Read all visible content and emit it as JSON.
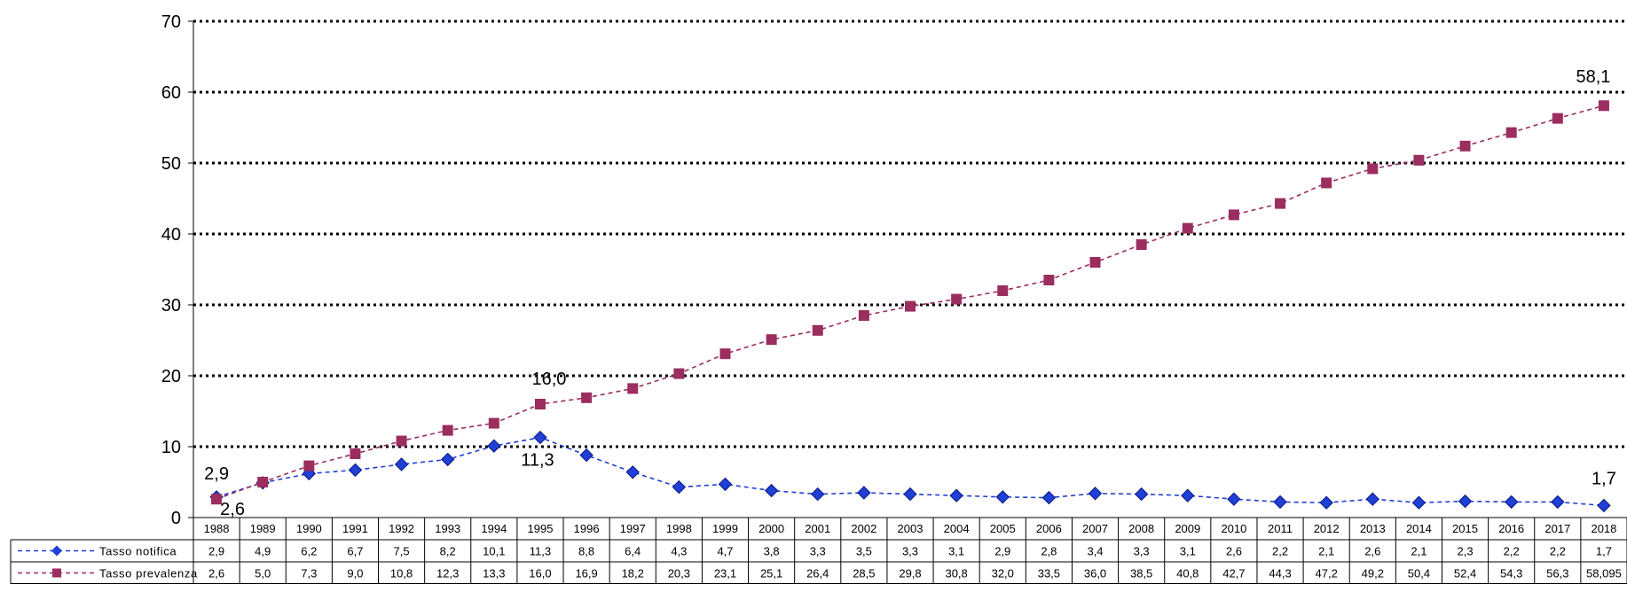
{
  "chart_data": {
    "type": "line",
    "title": "",
    "xlabel": "",
    "ylabel": "",
    "ylim": [
      0,
      70
    ],
    "yticks": [
      "0",
      "10",
      "20",
      "30",
      "40",
      "50",
      "60",
      "70"
    ],
    "grid": "horizontal-dotted",
    "legend": "data-table-bottom",
    "categories": [
      "1988",
      "1989",
      "1990",
      "1991",
      "1992",
      "1993",
      "1994",
      "1995",
      "1996",
      "1997",
      "1998",
      "1999",
      "2000",
      "2001",
      "2002",
      "2003",
      "2004",
      "2005",
      "2006",
      "2007",
      "2008",
      "2009",
      "2010",
      "2011",
      "2012",
      "2013",
      "2014",
      "2015",
      "2016",
      "2017",
      "2018"
    ],
    "series": [
      {
        "name": "Tasso notifica",
        "color": "#1f3fd6",
        "marker": "diamond",
        "values": [
          2.9,
          4.9,
          6.2,
          6.7,
          7.5,
          8.2,
          10.1,
          11.3,
          8.8,
          6.4,
          4.3,
          4.7,
          3.8,
          3.3,
          3.5,
          3.3,
          3.1,
          2.9,
          2.8,
          3.4,
          3.3,
          3.1,
          2.6,
          2.2,
          2.1,
          2.6,
          2.1,
          2.3,
          2.2,
          2.2,
          1.7
        ],
        "table_labels": [
          "2,9",
          "4,9",
          "6,2",
          "6,7",
          "7,5",
          "8,2",
          "10,1",
          "11,3",
          "8,8",
          "6,4",
          "4,3",
          "4,7",
          "3,8",
          "3,3",
          "3,5",
          "3,3",
          "3,1",
          "2,9",
          "2,8",
          "3,4",
          "3,3",
          "3,1",
          "2,6",
          "2,2",
          "2,1",
          "2,6",
          "2,1",
          "2,3",
          "2,2",
          "2,2",
          "1,7"
        ]
      },
      {
        "name": "Tasso prevalenza",
        "color": "#9b2d5f",
        "marker": "square",
        "values": [
          2.6,
          5.0,
          7.3,
          9.0,
          10.8,
          12.3,
          13.3,
          16.0,
          16.9,
          18.2,
          20.3,
          23.1,
          25.1,
          26.4,
          28.5,
          29.8,
          30.8,
          32.0,
          33.5,
          36.0,
          38.5,
          40.8,
          42.7,
          44.3,
          47.2,
          49.2,
          50.4,
          52.4,
          54.3,
          56.3,
          58.095
        ],
        "table_labels": [
          "2,6",
          "5,0",
          "7,3",
          "9,0",
          "10,8",
          "12,3",
          "13,3",
          "16,0",
          "16,9",
          "18,2",
          "20,3",
          "23,1",
          "25,1",
          "26,4",
          "28,5",
          "29,8",
          "30,8",
          "32,0",
          "33,5",
          "36,0",
          "38,5",
          "40,8",
          "42,7",
          "44,3",
          "47,2",
          "49,2",
          "50,4",
          "52,4",
          "54,3",
          "56,3",
          "58,095"
        ]
      }
    ],
    "annotations": [
      {
        "series": 0,
        "index": 0,
        "text": "2,9"
      },
      {
        "series": 1,
        "index": 0,
        "text": "2,6"
      },
      {
        "series": 1,
        "index": 7,
        "text": "16,0"
      },
      {
        "series": 0,
        "index": 7,
        "text": "11,3"
      },
      {
        "series": 1,
        "index": 30,
        "text": "58,1"
      },
      {
        "series": 0,
        "index": 30,
        "text": "1,7"
      }
    ]
  }
}
